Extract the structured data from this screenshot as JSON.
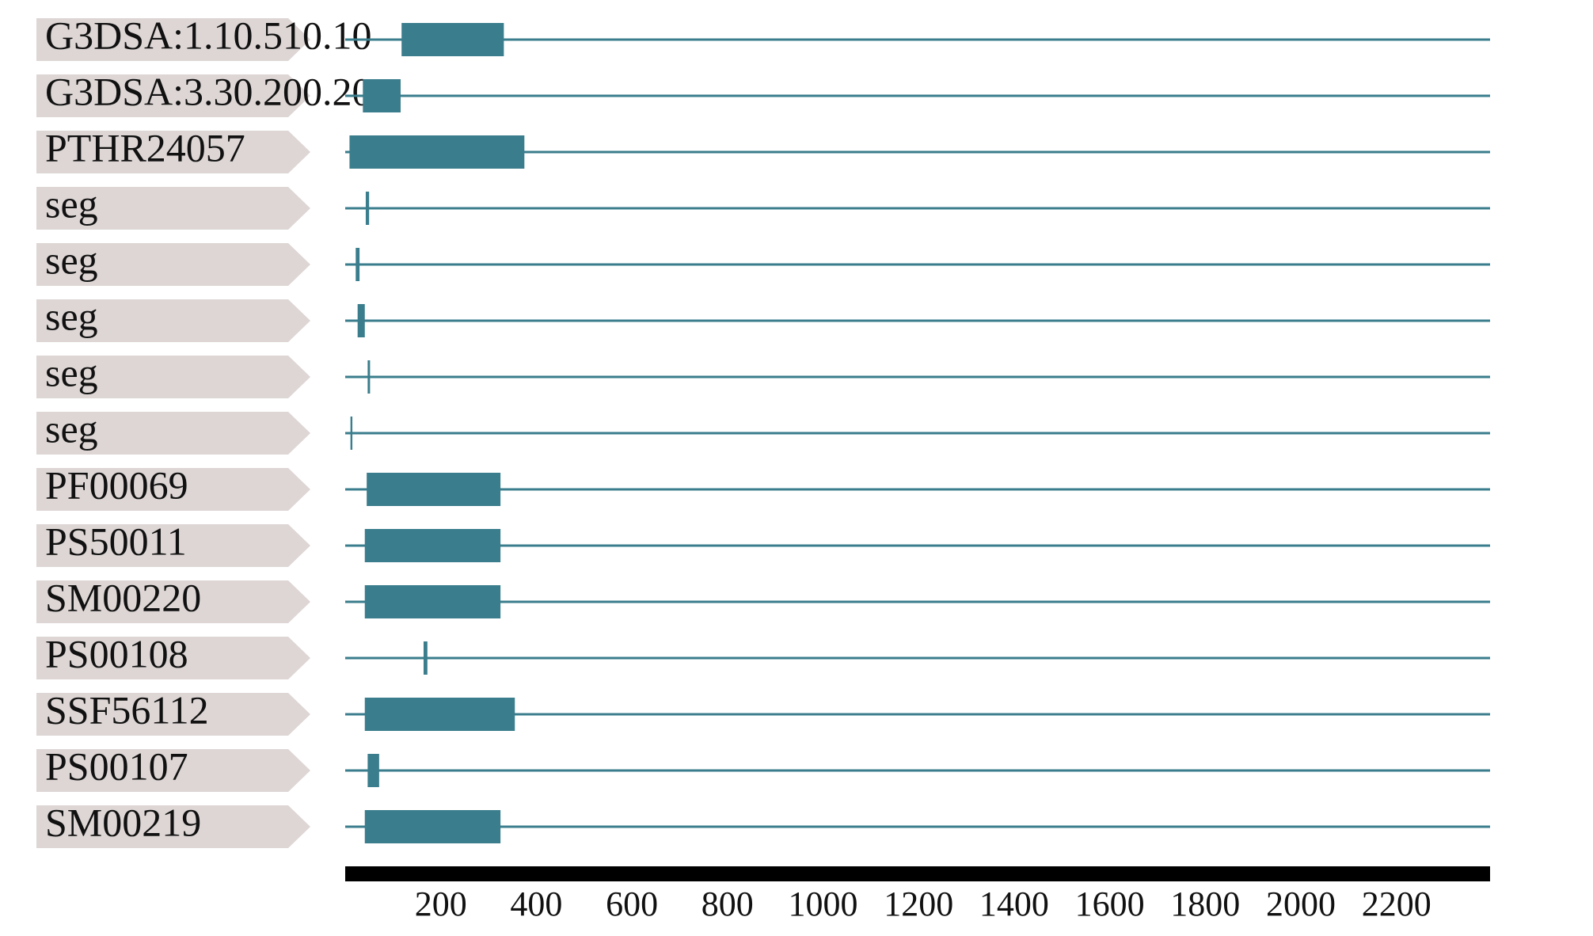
{
  "chart_data": {
    "type": "track",
    "color": "#3a7d8c",
    "xlim": [
      0,
      2396
    ],
    "xticks": [
      200,
      400,
      600,
      800,
      1000,
      1200,
      1400,
      1600,
      1800,
      2000,
      2200
    ],
    "tracks": [
      {
        "label": "G3DSA:1.10.510.10",
        "start": 118,
        "end": 332
      },
      {
        "label": "G3DSA:3.30.200.20",
        "start": 37,
        "end": 116
      },
      {
        "label": "PTHR24057",
        "start": 9,
        "end": 375
      },
      {
        "label": "seg",
        "start": 43,
        "end": 50
      },
      {
        "label": "seg",
        "start": 22,
        "end": 30
      },
      {
        "label": "seg",
        "start": 26,
        "end": 41
      },
      {
        "label": "seg",
        "start": 47,
        "end": 52
      },
      {
        "label": "seg",
        "start": 11,
        "end": 15
      },
      {
        "label": "PF00069",
        "start": 45,
        "end": 325
      },
      {
        "label": "PS50011",
        "start": 41,
        "end": 325
      },
      {
        "label": "SM00220",
        "start": 41,
        "end": 325
      },
      {
        "label": "PS00108",
        "start": 164,
        "end": 172
      },
      {
        "label": "SSF56112",
        "start": 41,
        "end": 355
      },
      {
        "label": "PS00107",
        "start": 47,
        "end": 71
      },
      {
        "label": "SM00219",
        "start": 41,
        "end": 325
      }
    ]
  }
}
